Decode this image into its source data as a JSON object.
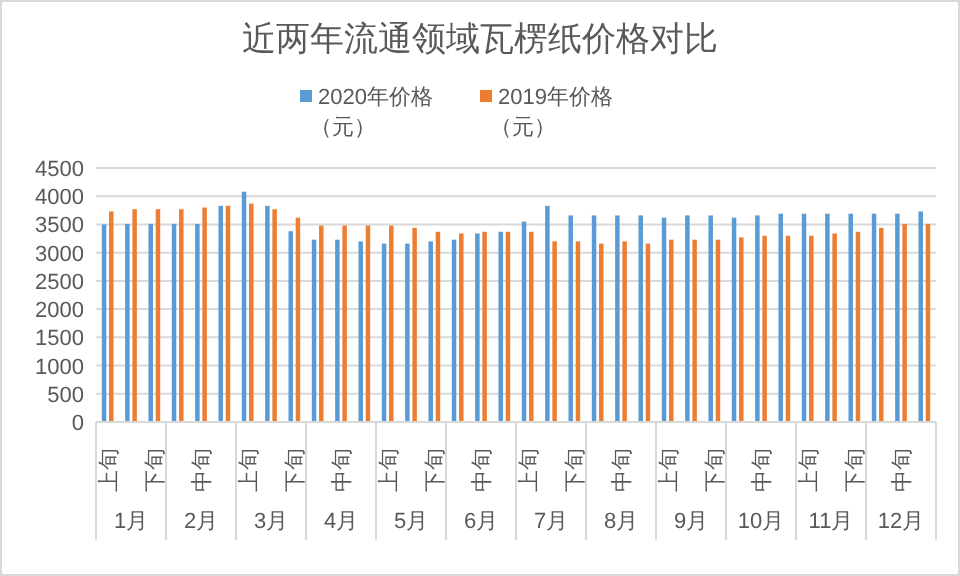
{
  "chart_data": {
    "type": "bar",
    "title": "近两年流通领域瓦楞纸价格对比",
    "categories": [
      "上旬",
      null,
      "下旬",
      null,
      "中旬",
      null,
      "上旬",
      null,
      "下旬",
      null,
      "中旬",
      null,
      "上旬",
      null,
      "下旬",
      null,
      "中旬",
      null,
      "上旬",
      null,
      "下旬",
      null,
      "中旬",
      null,
      "上旬",
      null,
      "下旬",
      null,
      "中旬",
      null,
      "上旬",
      null,
      "下旬",
      null,
      "中旬",
      null
    ],
    "series": [
      {
        "name": "2020年价格（元）",
        "color": "#5b9bd5",
        "values": [
          3500,
          3510,
          3510,
          3510,
          3510,
          3830,
          4080,
          3830,
          3380,
          3230,
          3230,
          3200,
          3160,
          3160,
          3200,
          3230,
          3340,
          3370,
          3550,
          3830,
          3660,
          3660,
          3660,
          3660,
          3620,
          3660,
          3660,
          3620,
          3660,
          3690,
          3690,
          3690,
          3690,
          3690,
          3690,
          3730
        ]
      },
      {
        "name": "2019年价格（元）",
        "color": "#ed7d31",
        "values": [
          3730,
          3770,
          3770,
          3770,
          3800,
          3830,
          3870,
          3770,
          3620,
          3480,
          3480,
          3480,
          3480,
          3440,
          3370,
          3340,
          3370,
          3370,
          3370,
          3200,
          3200,
          3160,
          3200,
          3160,
          3230,
          3230,
          3230,
          3270,
          3300,
          3300,
          3300,
          3340,
          3370,
          3440,
          3510,
          3510
        ]
      }
    ],
    "ylim": [
      0,
      4500
    ],
    "yticks": [
      0,
      500,
      1000,
      1500,
      2000,
      2500,
      3000,
      3500,
      4000,
      4500
    ],
    "grid": "y",
    "legend": "top",
    "annotations": [
      "1月",
      "2月",
      "3月",
      "4月",
      "5月",
      "6月",
      "7月",
      "8月",
      "9月",
      "10月",
      "11月",
      "12月"
    ]
  }
}
